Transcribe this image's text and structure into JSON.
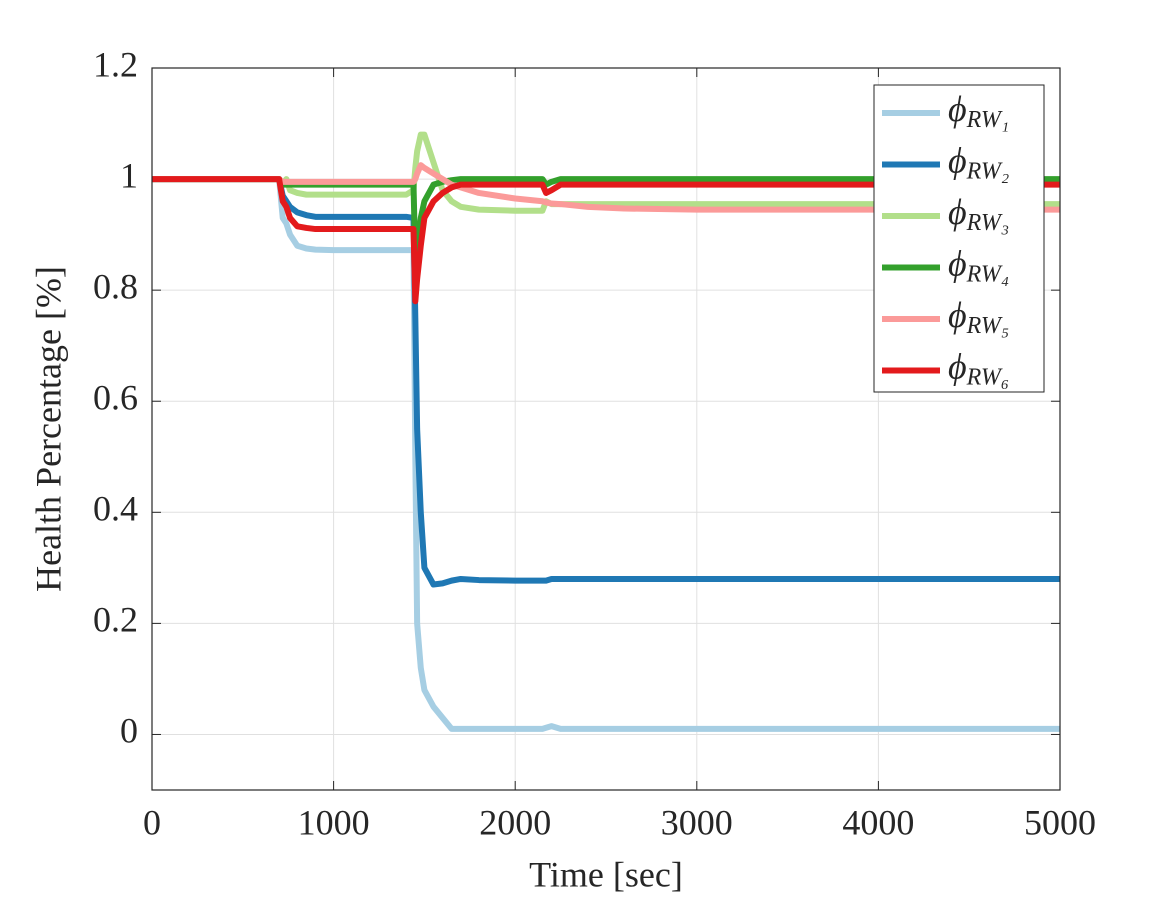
{
  "chart_data": {
    "type": "line",
    "xlabel": "Time [sec]",
    "ylabel": "Health Percentage [%]",
    "x": [
      0,
      700,
      720,
      740,
      760,
      800,
      850,
      900,
      1000,
      1400,
      1440,
      1450,
      1460,
      1480,
      1500,
      1550,
      1600,
      1650,
      1700,
      1800,
      2000,
      2150,
      2170,
      2200,
      2250,
      2400,
      2600,
      3000,
      4000,
      5000
    ],
    "series": [
      {
        "name": "ϕRW₁",
        "color": "#a6cee3",
        "values": [
          1,
          1,
          0.93,
          0.92,
          0.9,
          0.88,
          0.875,
          0.873,
          0.872,
          0.872,
          0.872,
          0.5,
          0.2,
          0.12,
          0.08,
          0.05,
          0.03,
          0.01,
          0.01,
          0.01,
          0.01,
          0.01,
          0.012,
          0.015,
          0.01,
          0.01,
          0.01,
          0.01,
          0.01,
          0.01
        ]
      },
      {
        "name": "ϕRW₂",
        "color": "#1f78b4",
        "values": [
          1,
          1,
          0.97,
          0.96,
          0.95,
          0.94,
          0.935,
          0.932,
          0.932,
          0.932,
          0.93,
          0.75,
          0.55,
          0.4,
          0.3,
          0.27,
          0.272,
          0.277,
          0.28,
          0.278,
          0.277,
          0.277,
          0.277,
          0.28,
          0.28,
          0.28,
          0.28,
          0.28,
          0.28,
          0.28
        ]
      },
      {
        "name": "ϕRW₃",
        "color": "#b2df8a",
        "values": [
          1,
          1,
          0.99,
          1.0,
          0.98,
          0.975,
          0.972,
          0.972,
          0.972,
          0.972,
          0.98,
          1.02,
          1.05,
          1.08,
          1.08,
          1.03,
          0.98,
          0.96,
          0.95,
          0.945,
          0.943,
          0.943,
          0.96,
          0.955,
          0.955,
          0.955,
          0.955,
          0.955,
          0.955,
          0.955
        ]
      },
      {
        "name": "ϕRW₄",
        "color": "#33a02c",
        "values": [
          1,
          1,
          0.99,
          0.99,
          0.99,
          0.99,
          0.99,
          0.99,
          0.99,
          0.99,
          0.99,
          0.85,
          0.88,
          0.93,
          0.96,
          0.99,
          0.995,
          0.998,
          1.0,
          1.0,
          1.0,
          1.0,
          0.99,
          0.995,
          1.0,
          1.0,
          1.0,
          1.0,
          1.0,
          1.0
        ]
      },
      {
        "name": "ϕRW₅",
        "color": "#fb9a99",
        "values": [
          1,
          1,
          0.995,
          0.995,
          0.995,
          0.995,
          0.995,
          0.995,
          0.995,
          0.995,
          0.995,
          1.0,
          1.01,
          1.025,
          1.02,
          1.01,
          1.0,
          0.99,
          0.985,
          0.975,
          0.965,
          0.96,
          0.958,
          0.956,
          0.955,
          0.95,
          0.947,
          0.945,
          0.945,
          0.945
        ]
      },
      {
        "name": "ϕRW₆",
        "color": "#e31a1c",
        "values": [
          1,
          1,
          0.96,
          0.95,
          0.93,
          0.915,
          0.912,
          0.91,
          0.91,
          0.91,
          0.91,
          0.78,
          0.82,
          0.88,
          0.93,
          0.96,
          0.975,
          0.985,
          0.99,
          0.99,
          0.99,
          0.99,
          0.975,
          0.98,
          0.99,
          0.99,
          0.99,
          0.99,
          0.99,
          0.99
        ]
      }
    ],
    "xlim": [
      0,
      5000
    ],
    "xticks": [
      0,
      1000,
      2000,
      3000,
      4000,
      5000
    ],
    "ylim": [
      -0.1,
      1.2
    ],
    "yticks": [
      0,
      0.2,
      0.4,
      0.6,
      0.8,
      1,
      1.2
    ],
    "grid": true,
    "legend": "upper right"
  }
}
